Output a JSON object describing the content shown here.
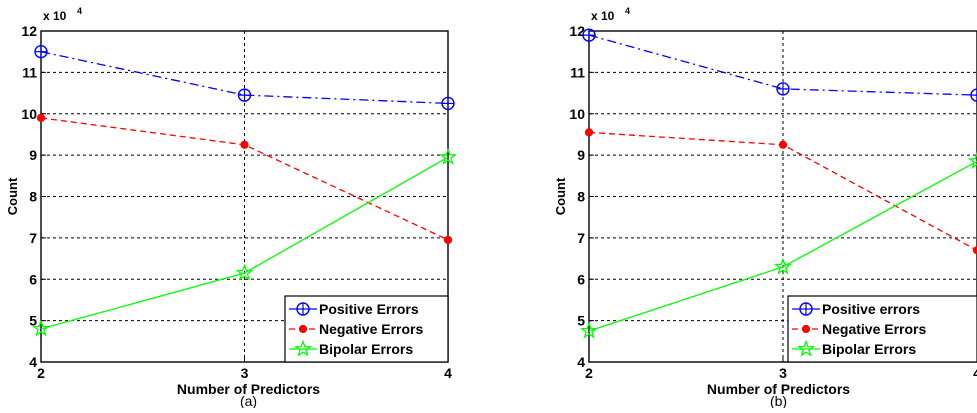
{
  "chart_data": [
    {
      "type": "line",
      "caption": "(a)",
      "xlabel": "Number of Predictors",
      "ylabel": "Count",
      "y_multiplier_label": "x 10",
      "y_multiplier_exp": "4",
      "x": [
        2,
        3,
        4
      ],
      "xlim": [
        2,
        4
      ],
      "ylim": [
        4,
        12
      ],
      "xticks": [
        "2",
        "3",
        "4"
      ],
      "yticks": [
        "4",
        "5",
        "6",
        "7",
        "8",
        "9",
        "10",
        "11",
        "12"
      ],
      "grid": true,
      "legend_position": "bottom-right",
      "series": [
        {
          "name": "Positive Errors",
          "values": [
            11.5,
            10.45,
            10.25
          ],
          "color": "#0000ff",
          "marker": "circle-plus",
          "dash": "dash-dot"
        },
        {
          "name": "Negative Errors",
          "values": [
            9.9,
            9.25,
            6.95
          ],
          "color": "#ff0000",
          "marker": "dot",
          "dash": "dashed"
        },
        {
          "name": "Bipolar Errors",
          "values": [
            4.8,
            6.15,
            8.95
          ],
          "color": "#00ff00",
          "marker": "star",
          "dash": "solid"
        }
      ]
    },
    {
      "type": "line",
      "caption": "(b)",
      "xlabel": "Number of Predictors",
      "ylabel": "Count",
      "y_multiplier_label": "x 10",
      "y_multiplier_exp": "4",
      "x": [
        2,
        3,
        4
      ],
      "xlim": [
        2,
        4
      ],
      "ylim": [
        4,
        12
      ],
      "xticks": [
        "2",
        "3",
        "4"
      ],
      "yticks": [
        "4",
        "5",
        "6",
        "7",
        "8",
        "9",
        "10",
        "11",
        "12"
      ],
      "grid": true,
      "legend_position": "bottom-right",
      "series": [
        {
          "name": "Positive errors",
          "values": [
            11.9,
            10.6,
            10.45
          ],
          "color": "#0000ff",
          "marker": "circle-plus",
          "dash": "dash-dot"
        },
        {
          "name": "Negative Errors",
          "values": [
            9.55,
            9.25,
            6.7
          ],
          "color": "#ff0000",
          "marker": "dot",
          "dash": "dashed"
        },
        {
          "name": "Bipolar Errors",
          "values": [
            4.75,
            6.3,
            8.85
          ],
          "color": "#00ff00",
          "marker": "star",
          "dash": "solid"
        }
      ]
    }
  ]
}
